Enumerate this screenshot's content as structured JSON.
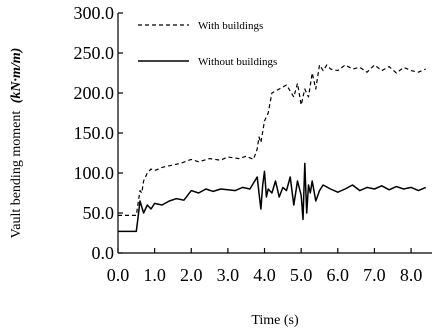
{
  "chart_data": {
    "type": "line",
    "title": "",
    "xlabel": "Time (s)",
    "ylabel": "Vault bending moment",
    "ylabel_unit": "(kN·m/m)",
    "xlim": [
      0,
      8.4
    ],
    "ylim": [
      0,
      300
    ],
    "xticks": [
      "0.0",
      "1.0",
      "2.0",
      "3.0",
      "4.0",
      "5.0",
      "6.0",
      "7.0",
      "8.0"
    ],
    "yticks": [
      "0.0",
      "50.0",
      "100.0",
      "150.0",
      "200.0",
      "250.0",
      "300.0"
    ],
    "grid": false,
    "legend_position": "top-left",
    "series": [
      {
        "name": "With buildings",
        "style": "dashed",
        "color": "#000000",
        "x": [
          0.0,
          0.5,
          0.55,
          0.6,
          0.65,
          0.7,
          0.8,
          0.9,
          1.0,
          1.2,
          1.5,
          1.7,
          2.0,
          2.2,
          2.5,
          2.8,
          3.0,
          3.3,
          3.5,
          3.7,
          3.8,
          3.85,
          3.9,
          4.0,
          4.1,
          4.2,
          4.4,
          4.6,
          4.8,
          4.9,
          5.0,
          5.1,
          5.2,
          5.3,
          5.4,
          5.5,
          5.6,
          5.7,
          5.8,
          6.0,
          6.2,
          6.4,
          6.6,
          6.8,
          7.0,
          7.2,
          7.4,
          7.6,
          7.8,
          8.0,
          8.2,
          8.4
        ],
        "y": [
          47,
          47,
          62,
          78,
          75,
          90,
          100,
          105,
          103,
          107,
          110,
          112,
          117,
          114,
          118,
          116,
          120,
          118,
          121,
          117,
          130,
          145,
          138,
          165,
          175,
          200,
          205,
          210,
          195,
          212,
          185,
          205,
          195,
          225,
          205,
          235,
          228,
          235,
          230,
          228,
          235,
          230,
          232,
          226,
          235,
          228,
          233,
          225,
          232,
          228,
          226,
          230
        ]
      },
      {
        "name": "Without buildings",
        "style": "solid",
        "color": "#000000",
        "x": [
          0.0,
          0.5,
          0.55,
          0.6,
          0.7,
          0.8,
          0.9,
          1.0,
          1.2,
          1.4,
          1.6,
          1.8,
          2.0,
          2.2,
          2.4,
          2.6,
          2.8,
          3.0,
          3.2,
          3.4,
          3.6,
          3.8,
          3.85,
          3.9,
          3.95,
          4.0,
          4.05,
          4.1,
          4.2,
          4.3,
          4.4,
          4.5,
          4.6,
          4.7,
          4.8,
          4.9,
          5.0,
          5.05,
          5.1,
          5.15,
          5.2,
          5.25,
          5.3,
          5.4,
          5.5,
          5.6,
          5.8,
          6.0,
          6.2,
          6.4,
          6.6,
          6.8,
          7.0,
          7.2,
          7.4,
          7.6,
          7.8,
          8.0,
          8.2,
          8.4
        ],
        "y": [
          27,
          27,
          45,
          65,
          50,
          60,
          55,
          62,
          60,
          65,
          68,
          66,
          78,
          75,
          80,
          77,
          80,
          79,
          78,
          82,
          80,
          95,
          75,
          55,
          85,
          102,
          70,
          80,
          75,
          90,
          70,
          82,
          78,
          95,
          60,
          90,
          72,
          42,
          112,
          50,
          85,
          75,
          90,
          65,
          78,
          85,
          80,
          76,
          80,
          85,
          78,
          82,
          80,
          84,
          79,
          83,
          80,
          82,
          78,
          82
        ]
      }
    ]
  }
}
